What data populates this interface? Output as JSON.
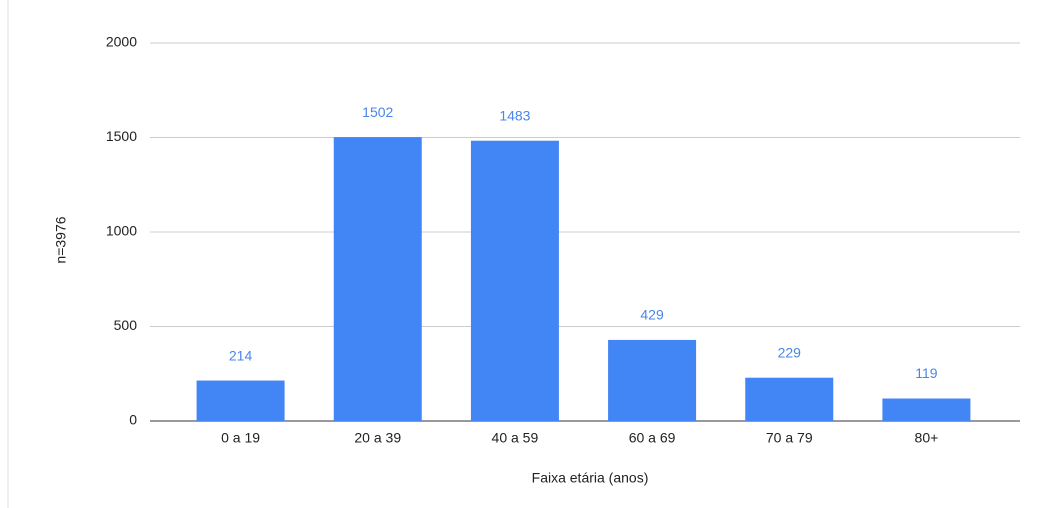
{
  "chart_data": {
    "type": "bar",
    "categories": [
      "0 a 19",
      "20 a 39",
      "40 a 59",
      "60 a 69",
      "70 a 79",
      "80+"
    ],
    "values": [
      214,
      1502,
      1483,
      429,
      229,
      119
    ],
    "color": "#4285f4",
    "value_label_color": "#4a86e8",
    "ylim": [
      0,
      2000
    ],
    "yticks": [
      0,
      500,
      1000,
      1500,
      2000
    ],
    "grid": true,
    "ylabel": "n=3976",
    "xlabel": "Faixa etária (anos)"
  }
}
